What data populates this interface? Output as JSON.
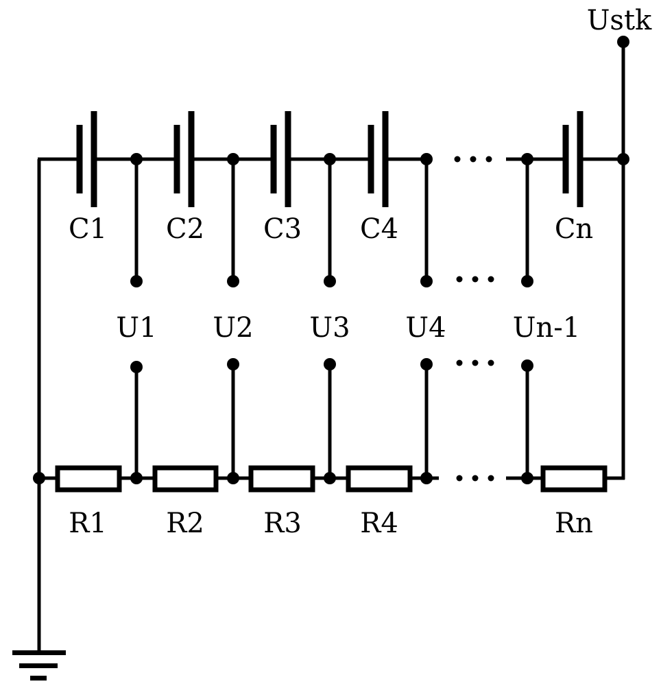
{
  "supply_label": "Ustk",
  "capacitors": [
    "C1",
    "C2",
    "C3",
    "C4",
    "Cn"
  ],
  "voltages": [
    "U1",
    "U2",
    "U3",
    "U4",
    "Un-1"
  ],
  "resistors": [
    "R1",
    "R2",
    "R3",
    "R4",
    "Rn"
  ],
  "ellipsis": "···",
  "colors": {
    "line": "#000000",
    "background": "#ffffff"
  },
  "icons": {
    "ground": "ground-symbol-icon"
  }
}
